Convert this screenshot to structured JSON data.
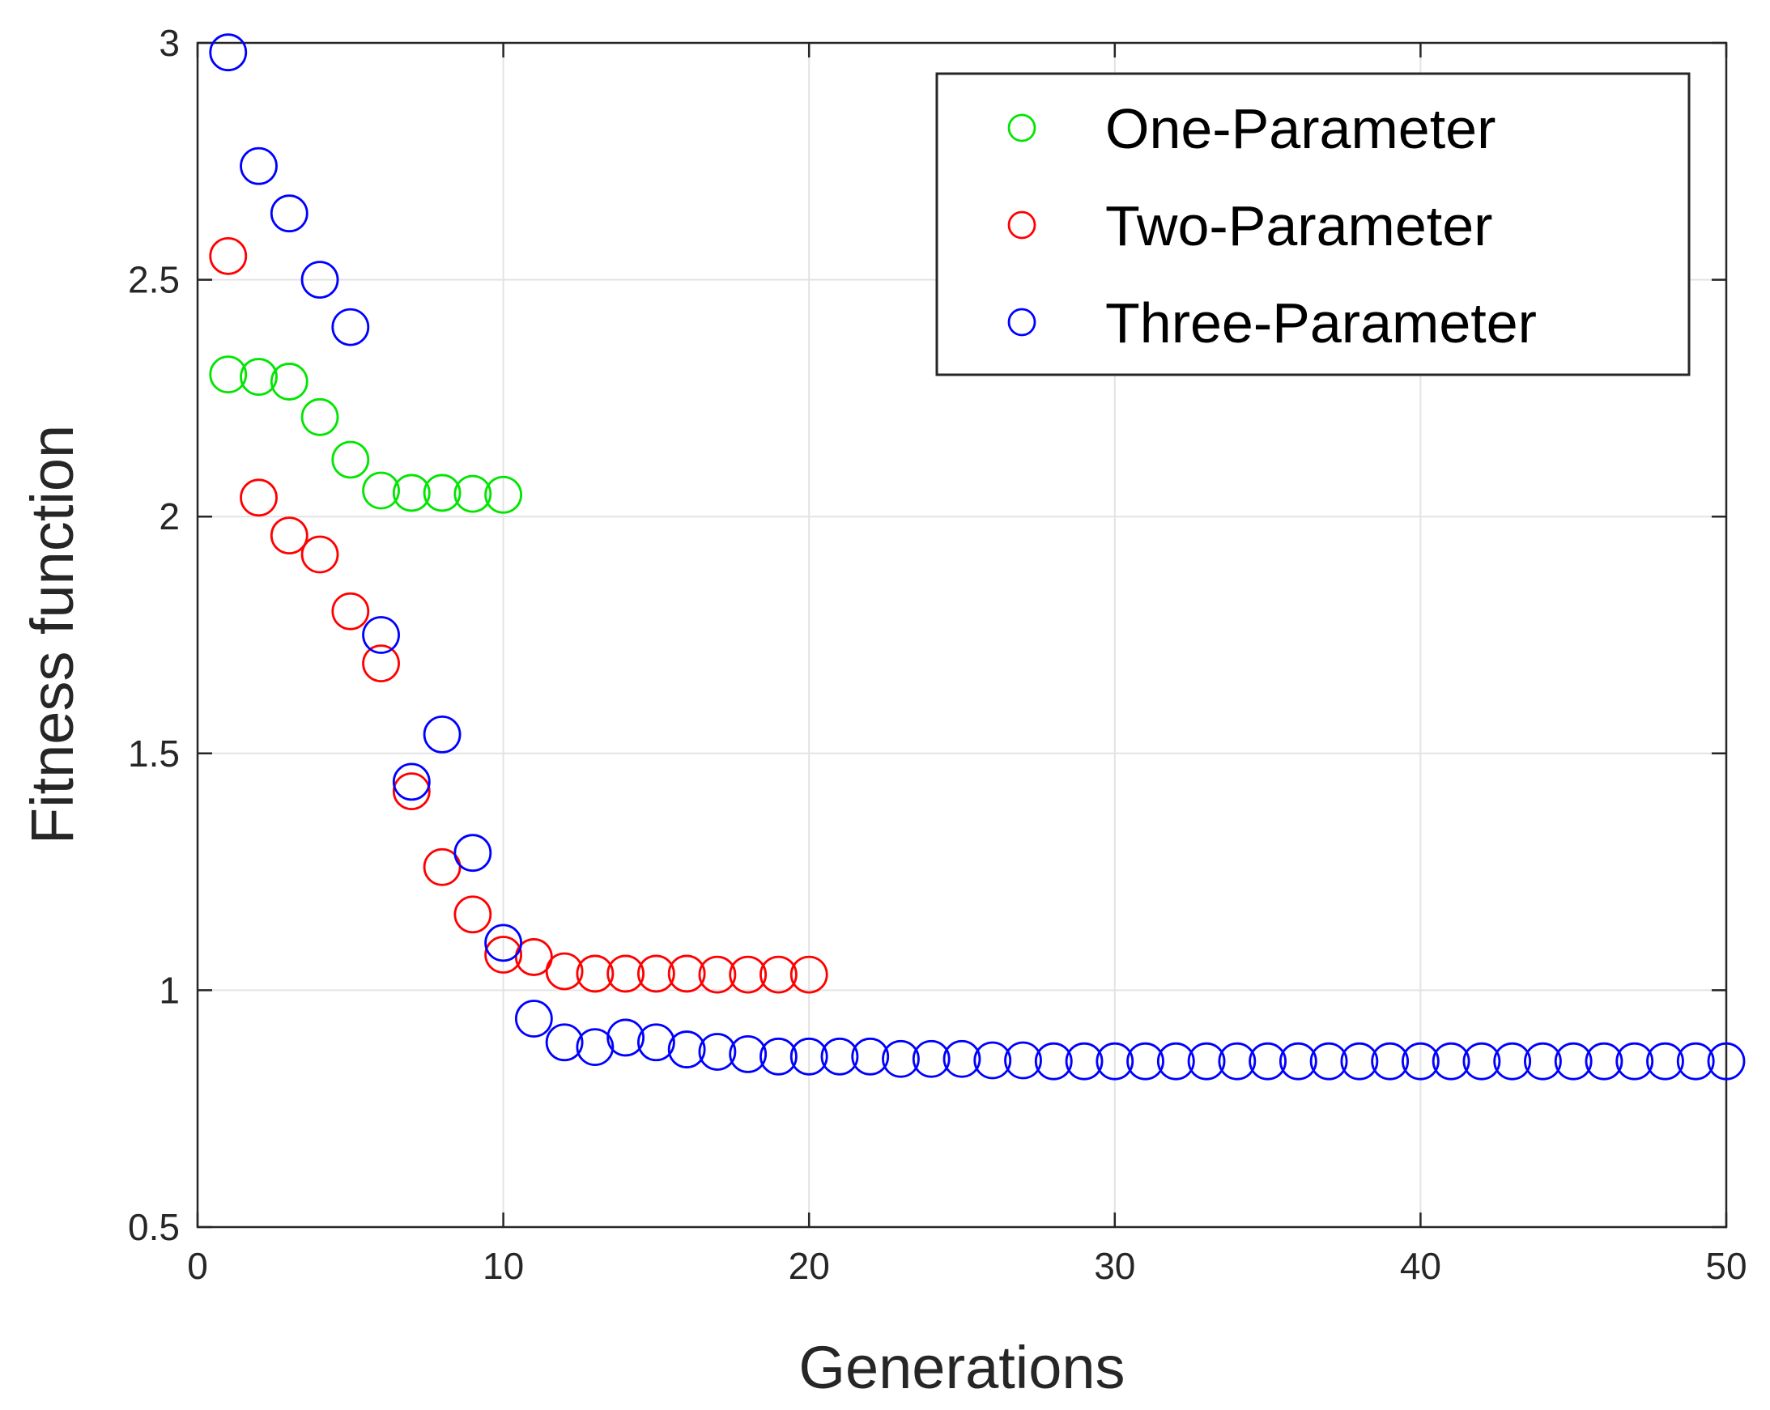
{
  "chart_data": {
    "type": "scatter",
    "title": "",
    "xlabel": "Generations",
    "ylabel": "Fitness function",
    "xlim": [
      0,
      50
    ],
    "ylim": [
      0.5,
      3
    ],
    "x_ticks": [
      0,
      10,
      20,
      30,
      40,
      50
    ],
    "x_tick_labels": [
      "0",
      "10",
      "20",
      "30",
      "40",
      "50"
    ],
    "y_ticks": [
      0.5,
      1,
      1.5,
      2,
      2.5,
      3
    ],
    "y_tick_labels": [
      "0.5",
      "1",
      "1.5",
      "2",
      "2.5",
      "3"
    ],
    "grid": true,
    "legend_position": "top-right",
    "series": [
      {
        "name": "One-Parameter",
        "color": "#00e600",
        "x": [
          1,
          2,
          3,
          4,
          5,
          6,
          7,
          8,
          9,
          10
        ],
        "values": [
          2.3,
          2.295,
          2.285,
          2.21,
          2.12,
          2.055,
          2.05,
          2.05,
          2.048,
          2.046
        ]
      },
      {
        "name": "Two-Parameter",
        "color": "#ff0000",
        "x": [
          1,
          2,
          3,
          4,
          5,
          6,
          7,
          8,
          9,
          10,
          11,
          12,
          13,
          14,
          15,
          16,
          17,
          18,
          19,
          20
        ],
        "values": [
          2.55,
          2.04,
          1.96,
          1.92,
          1.8,
          1.69,
          1.42,
          1.26,
          1.16,
          1.075,
          1.07,
          1.04,
          1.035,
          1.035,
          1.035,
          1.035,
          1.033,
          1.033,
          1.033,
          1.033
        ]
      },
      {
        "name": "Three-Parameter",
        "color": "#0000ff",
        "x": [
          1,
          2,
          3,
          4,
          5,
          6,
          7,
          8,
          9,
          10,
          11,
          12,
          13,
          14,
          15,
          16,
          17,
          18,
          19,
          20,
          21,
          22,
          23,
          24,
          25,
          26,
          27,
          28,
          29,
          30,
          31,
          32,
          33,
          34,
          35,
          36,
          37,
          38,
          39,
          40,
          41,
          42,
          43,
          44,
          45,
          46,
          47,
          48,
          49,
          50
        ],
        "values": [
          2.98,
          2.74,
          2.64,
          2.5,
          2.4,
          1.75,
          1.44,
          1.54,
          1.29,
          1.1,
          0.94,
          0.89,
          0.88,
          0.9,
          0.89,
          0.875,
          0.87,
          0.865,
          0.86,
          0.86,
          0.86,
          0.86,
          0.855,
          0.855,
          0.855,
          0.852,
          0.852,
          0.85,
          0.85,
          0.85,
          0.85,
          0.85,
          0.85,
          0.85,
          0.85,
          0.85,
          0.85,
          0.85,
          0.85,
          0.85,
          0.85,
          0.85,
          0.85,
          0.85,
          0.85,
          0.85,
          0.85,
          0.85,
          0.85,
          0.85
        ]
      }
    ]
  }
}
